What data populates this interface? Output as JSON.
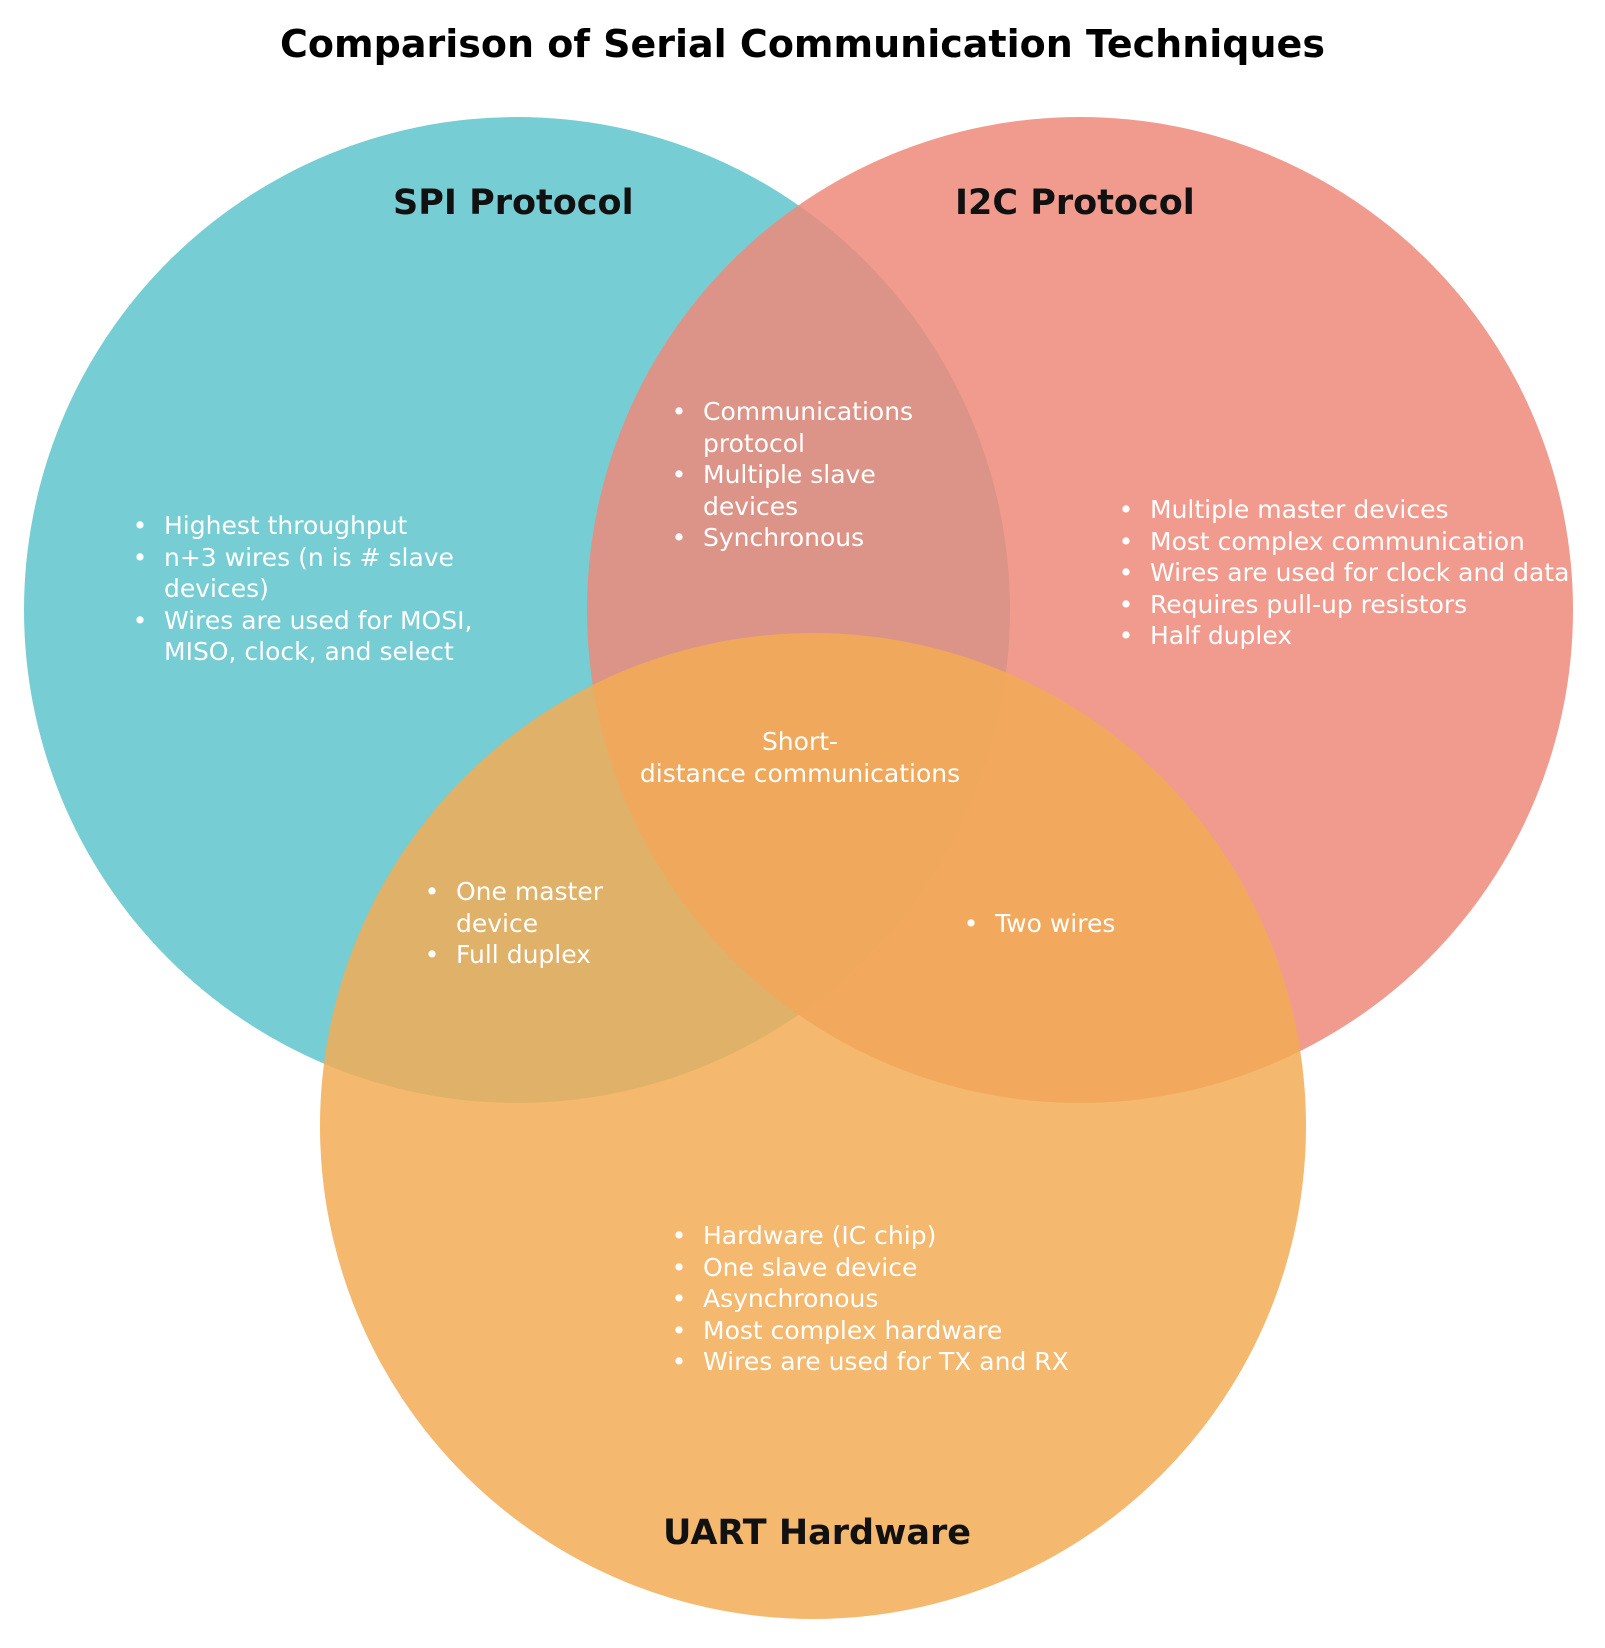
{
  "title": "Comparison of Serial Communication Techniques",
  "colors": {
    "spi": "#5fc4cc",
    "i2c": "#ee897a",
    "uart": "#f2ab55",
    "text": "#ffffff"
  },
  "sets": {
    "spi": {
      "label": "SPI Protocol",
      "items": [
        "Highest throughput",
        "n+3 wires (n is # slave devices)",
        "Wires are used for MOSI, MISO, clock, and select"
      ]
    },
    "i2c": {
      "label": "I2C Protocol",
      "items": [
        "Multiple master devices",
        "Most complex communication",
        "Wires are used for clock and data",
        "Requires pull-up resistors",
        "Half duplex"
      ]
    },
    "uart": {
      "label": "UART Hardware",
      "items": [
        "Hardware (IC chip)",
        "One slave device",
        "Asynchronous",
        "Most complex hardware",
        "Wires are used for TX and RX"
      ]
    }
  },
  "intersections": {
    "spi_i2c": [
      "Communications protocol",
      "Multiple slave devices",
      "Synchronous"
    ],
    "spi_uart": [
      "One master device",
      "Full duplex"
    ],
    "i2c_uart": [
      "Two wires"
    ],
    "all": {
      "line1": "Short-",
      "line2": "distance communications"
    }
  }
}
